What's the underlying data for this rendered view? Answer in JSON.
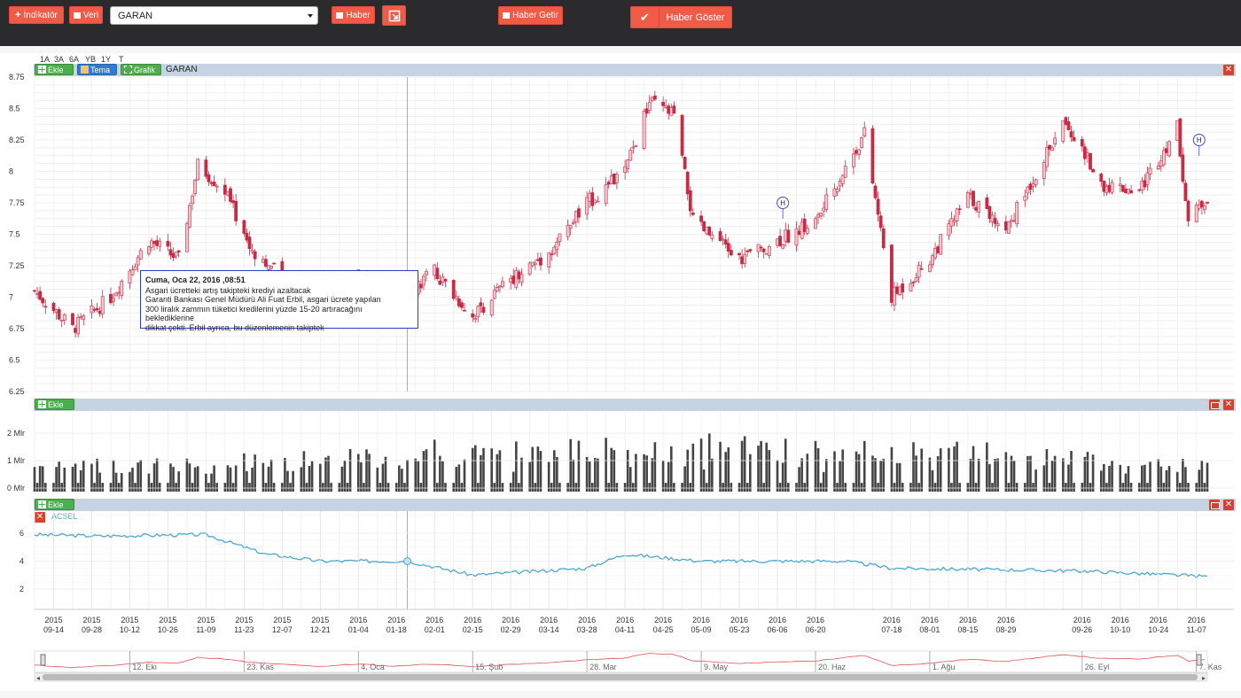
{
  "toolbar": {
    "indikator_label": "İndikatör",
    "veri_label": "Veri",
    "symbol_value": "GARAN",
    "haber_label": "Haber",
    "haber_getir_label": "Haber Getir",
    "haber_goster_label": "Haber Göster"
  },
  "ranges": [
    "1A",
    "3A",
    "6A",
    "YB",
    "1Y",
    "T"
  ],
  "main_panel": {
    "ekle_label": "Ekle",
    "tema_label": "Tema",
    "grafik_label": "Grafik",
    "symbol": "GARAN",
    "y_ticks": [
      "8.75",
      "8.5",
      "8.25",
      "8",
      "7.75",
      "7.5",
      "7.25",
      "7",
      "6.75",
      "6.5",
      "6.25"
    ],
    "news_marker": "H"
  },
  "volume_panel": {
    "ekle_label": "Ekle",
    "y_ticks": [
      "2 Mlr",
      "1 Mlr",
      "0 Mlr"
    ]
  },
  "acsel_panel": {
    "ekle_label": "Ekle",
    "indicator_name": "ACSEL",
    "y_ticks": [
      "6",
      "4",
      "2"
    ]
  },
  "x_axis": [
    [
      "2015",
      "09-14"
    ],
    [
      "2015",
      "09-28"
    ],
    [
      "2015",
      "10-12"
    ],
    [
      "2015",
      "10-26"
    ],
    [
      "2015",
      "11-09"
    ],
    [
      "2015",
      "11-23"
    ],
    [
      "2015",
      "12-07"
    ],
    [
      "2015",
      "12-21"
    ],
    [
      "2016",
      "01-04"
    ],
    [
      "2016",
      "01-18"
    ],
    [
      "2016",
      "02-01"
    ],
    [
      "2016",
      "02-15"
    ],
    [
      "2016",
      "02-29"
    ],
    [
      "2016",
      "03-14"
    ],
    [
      "2016",
      "03-28"
    ],
    [
      "2016",
      "04-11"
    ],
    [
      "2016",
      "04-25"
    ],
    [
      "2016",
      "05-09"
    ],
    [
      "2016",
      "05-23"
    ],
    [
      "2016",
      "06-06"
    ],
    [
      "2016",
      "06-20"
    ],
    [
      "2016",
      "07-18"
    ],
    [
      "2016",
      "08-01"
    ],
    [
      "2016",
      "08-15"
    ],
    [
      "2016",
      "08-29"
    ],
    [
      "2016",
      "09-26"
    ],
    [
      "2016",
      "10-10"
    ],
    [
      "2016",
      "10-24"
    ],
    [
      "2016",
      "11-07"
    ]
  ],
  "navigator_labels": [
    "12. Eki",
    "23. Kas",
    "4. Oca",
    "15. Şub",
    "28. Mar",
    "9. May",
    "20. Haz",
    "1. Ağu",
    "26. Eyl",
    "7. Kas"
  ],
  "tooltip": {
    "title": "Cuma, Oca 22, 2016 ,08:51",
    "lines": [
      "Asgari ücretteki artış takipteki krediyi azaltacak",
      "Garanti Bankası Genel Müdürü Ali Fuat Erbil, asgari ücrete yapılan",
      "300 liralık zammın tüketici kredilerini yüzde 15-20 artıracağını beklediklerine",
      "dikkat çekti. Erbil ayrıca, bu düzenlemenin takiptek"
    ]
  },
  "colors": {
    "accent": "#f05a46",
    "candle": "#c62b45",
    "acsel": "#4aa8d0",
    "volume": "#444444"
  },
  "chart_data": {
    "type": "candlestick",
    "symbol": "GARAN",
    "x_range": [
      "2015-09-07",
      "2016-11-11"
    ],
    "ylim": [
      6.25,
      8.75
    ],
    "close_keypoints": [
      [
        "2015-09-07",
        7.05
      ],
      [
        "2015-09-21",
        6.75
      ],
      [
        "2015-10-05",
        7.0
      ],
      [
        "2015-10-19",
        7.45
      ],
      [
        "2015-10-30",
        7.3
      ],
      [
        "2015-11-06",
        8.05
      ],
      [
        "2015-11-16",
        7.85
      ],
      [
        "2015-11-25",
        7.4
      ],
      [
        "2015-12-07",
        7.15
      ],
      [
        "2015-12-21",
        6.9
      ],
      [
        "2016-01-04",
        7.2
      ],
      [
        "2016-01-18",
        6.9
      ],
      [
        "2016-01-22",
        7.05
      ],
      [
        "2016-02-01",
        7.2
      ],
      [
        "2016-02-15",
        6.85
      ],
      [
        "2016-02-29",
        7.15
      ],
      [
        "2016-03-14",
        7.35
      ],
      [
        "2016-03-28",
        7.75
      ],
      [
        "2016-04-11",
        8.0
      ],
      [
        "2016-04-20",
        8.55
      ],
      [
        "2016-04-29",
        8.45
      ],
      [
        "2016-05-06",
        7.6
      ],
      [
        "2016-05-23",
        7.3
      ],
      [
        "2016-06-06",
        7.45
      ],
      [
        "2016-06-20",
        7.6
      ],
      [
        "2016-07-08",
        8.3
      ],
      [
        "2016-07-18",
        7.0
      ],
      [
        "2016-08-01",
        7.3
      ],
      [
        "2016-08-15",
        7.8
      ],
      [
        "2016-08-29",
        7.55
      ],
      [
        "2016-09-12",
        8.1
      ],
      [
        "2016-09-20",
        8.4
      ],
      [
        "2016-10-03",
        7.9
      ],
      [
        "2016-10-17",
        7.85
      ],
      [
        "2016-10-31",
        8.35
      ],
      [
        "2016-11-04",
        7.6
      ],
      [
        "2016-11-11",
        7.8
      ]
    ],
    "volume_keypoints": [
      [
        "2015-09-07",
        0.9
      ],
      [
        "2016-05-13",
        2.0
      ],
      [
        "2016-07-15",
        1.8
      ],
      [
        "2016-11-11",
        0.9
      ]
    ],
    "acsel_keypoints": [
      [
        "2015-09-07",
        5.9
      ],
      [
        "2015-10-01",
        5.8
      ],
      [
        "2015-11-09",
        5.9
      ],
      [
        "2015-12-01",
        4.5
      ],
      [
        "2015-12-21",
        4.0
      ],
      [
        "2016-01-22",
        4.0
      ],
      [
        "2016-02-15",
        3.0
      ],
      [
        "2016-03-28",
        3.5
      ],
      [
        "2016-04-11",
        4.5
      ],
      [
        "2016-05-09",
        4.0
      ],
      [
        "2016-06-06",
        4.0
      ],
      [
        "2016-07-01",
        4.0
      ],
      [
        "2016-07-18",
        3.5
      ],
      [
        "2016-09-26",
        3.3
      ],
      [
        "2016-11-11",
        2.9
      ]
    ]
  }
}
